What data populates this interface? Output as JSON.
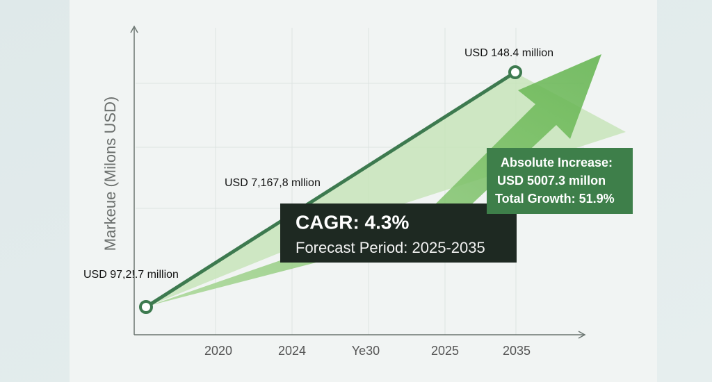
{
  "axis": {
    "y_label": "Markeue (Milons USD)",
    "x_ticks": [
      "2020",
      "2024",
      "Ye30",
      "2025",
      "2035"
    ]
  },
  "point_labels": {
    "end": "USD 148.4 million",
    "middle": "USD 7,167,8 mllion",
    "start": "USD 97,2!.7 million"
  },
  "cagr_box": {
    "title": "CAGR: 4.3%",
    "subtitle": "Forecast Period: 2025-2035"
  },
  "increase_box": {
    "line1": "Absolute Increase:",
    "line2": "USD 5007.3 millon",
    "line3": "Total Growth: 51.9%"
  }
}
